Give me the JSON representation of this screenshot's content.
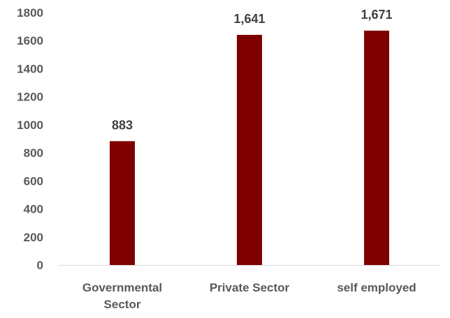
{
  "chart_data": {
    "type": "bar",
    "title": "",
    "xlabel": "",
    "ylabel": "",
    "categories": [
      "Governmental Sector",
      "Private Sector",
      "self employed"
    ],
    "category_lines": [
      [
        "Governmental",
        "Sector"
      ],
      [
        "Private Sector"
      ],
      [
        "self employed"
      ]
    ],
    "values": [
      883,
      1641,
      1671
    ],
    "value_labels": [
      "883",
      "1,641",
      "1,671"
    ],
    "ylim": [
      0,
      1800
    ],
    "yticks": [
      0,
      200,
      400,
      600,
      800,
      1000,
      1200,
      1400,
      1600,
      1800
    ],
    "grid": false,
    "legend": "none",
    "colors": {
      "bar": "#7F0000",
      "text": "#595959",
      "value_label": "#404040",
      "axis_line": "#D9D9D9"
    }
  }
}
